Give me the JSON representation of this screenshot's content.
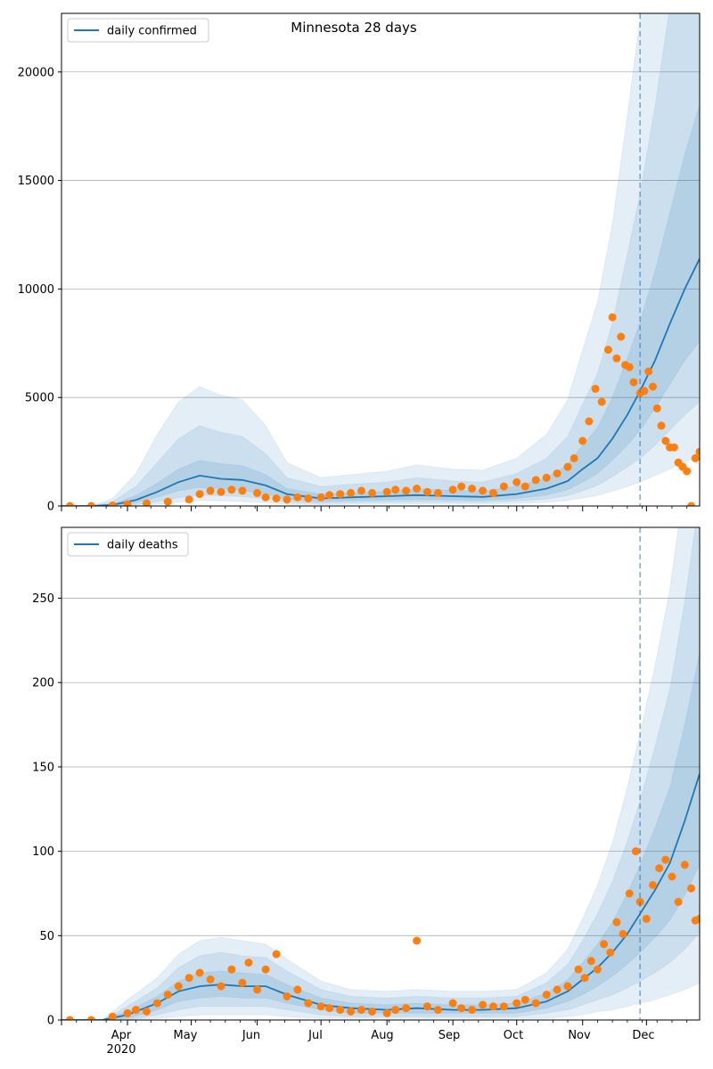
{
  "chart_data": [
    {
      "type": "line",
      "title": "Minnesota 28 days",
      "series": [
        {
          "name": "daily confirmed",
          "color": "#1f77b4"
        }
      ],
      "observed_color": "#ff7f0e",
      "band_color": "#1f77b4",
      "forecast_start": "2020-11-28",
      "xlim": [
        "2020-03-01",
        "2020-12-26"
      ],
      "ylim": [
        0,
        22700
      ],
      "yticks": [
        0,
        5000,
        10000,
        15000,
        20000
      ],
      "ytick_labels": [
        "0",
        "5000",
        "10000",
        "15000",
        "20000"
      ],
      "grid": "horizontal",
      "legend_position": "top-left",
      "x_dates": [
        "2020-03-01",
        "2020-03-15",
        "2020-03-25",
        "2020-04-05",
        "2020-04-15",
        "2020-04-25",
        "2020-05-05",
        "2020-05-15",
        "2020-05-25",
        "2020-06-05",
        "2020-06-15",
        "2020-07-01",
        "2020-07-15",
        "2020-08-01",
        "2020-08-15",
        "2020-09-01",
        "2020-09-15",
        "2020-10-01",
        "2020-10-15",
        "2020-10-25",
        "2020-11-01",
        "2020-11-08",
        "2020-11-15",
        "2020-11-22",
        "2020-11-28",
        "2020-12-05",
        "2020-12-12",
        "2020-12-19",
        "2020-12-26"
      ],
      "mean": [
        0,
        0,
        50,
        280,
        650,
        1100,
        1400,
        1250,
        1200,
        950,
        550,
        350,
        400,
        450,
        500,
        450,
        420,
        550,
        800,
        1150,
        1700,
        2200,
        3100,
        4200,
        5300,
        6700,
        8400,
        10000,
        11400
      ],
      "band_50_low": [
        0,
        0,
        20,
        150,
        400,
        700,
        850,
        800,
        720,
        550,
        300,
        200,
        250,
        280,
        300,
        280,
        260,
        350,
        500,
        750,
        1100,
        1500,
        2100,
        2800,
        3500,
        4500,
        5600,
        6700,
        7600
      ],
      "band_50_high": [
        0,
        0,
        90,
        480,
        1050,
        1700,
        2100,
        1950,
        1850,
        1450,
        800,
        550,
        600,
        680,
        800,
        720,
        700,
        900,
        1300,
        1900,
        2800,
        3600,
        5000,
        6800,
        8500,
        10800,
        13500,
        16200,
        18500
      ],
      "band_80_low": [
        0,
        0,
        5,
        60,
        200,
        380,
        500,
        480,
        430,
        330,
        170,
        120,
        160,
        180,
        190,
        180,
        170,
        230,
        320,
        480,
        700,
        950,
        1350,
        1800,
        2200,
        2800,
        3500,
        4200,
        4800
      ],
      "band_80_high": [
        0,
        0,
        200,
        900,
        2000,
        3100,
        3700,
        3400,
        3200,
        2400,
        1300,
        900,
        1000,
        1100,
        1300,
        1150,
        1100,
        1500,
        2200,
        3200,
        4700,
        6100,
        8400,
        11600,
        14400,
        18400,
        23000,
        27000,
        31000
      ],
      "band_95_low": [
        0,
        0,
        0,
        15,
        80,
        180,
        250,
        240,
        200,
        150,
        80,
        60,
        80,
        90,
        100,
        90,
        90,
        120,
        170,
        250,
        360,
        480,
        680,
        900,
        1100,
        1400,
        1700,
        2000,
        2300
      ],
      "band_95_high": [
        0,
        0,
        350,
        1500,
        3300,
        4800,
        5500,
        5100,
        4900,
        3700,
        2000,
        1300,
        1450,
        1600,
        1900,
        1700,
        1650,
        2200,
        3300,
        4900,
        7200,
        9400,
        13000,
        18000,
        22500,
        28000,
        34000,
        40000,
        46000
      ],
      "observed_dates": [
        "2020-03-05",
        "2020-03-15",
        "2020-03-25",
        "2020-04-01",
        "2020-04-10",
        "2020-04-20",
        "2020-04-30",
        "2020-05-05",
        "2020-05-10",
        "2020-05-15",
        "2020-05-20",
        "2020-05-25",
        "2020-06-01",
        "2020-06-05",
        "2020-06-10",
        "2020-06-15",
        "2020-06-20",
        "2020-06-25",
        "2020-07-01",
        "2020-07-05",
        "2020-07-10",
        "2020-07-15",
        "2020-07-20",
        "2020-07-25",
        "2020-08-01",
        "2020-08-05",
        "2020-08-10",
        "2020-08-15",
        "2020-08-20",
        "2020-08-25",
        "2020-09-01",
        "2020-09-05",
        "2020-09-10",
        "2020-09-15",
        "2020-09-20",
        "2020-09-25",
        "2020-10-01",
        "2020-10-05",
        "2020-10-10",
        "2020-10-15",
        "2020-10-20",
        "2020-10-25",
        "2020-10-28",
        "2020-11-01",
        "2020-11-04",
        "2020-11-07",
        "2020-11-10",
        "2020-11-13",
        "2020-11-15",
        "2020-11-17",
        "2020-11-19",
        "2020-11-21",
        "2020-11-23",
        "2020-11-25",
        "2020-11-28",
        "2020-11-30",
        "2020-12-02",
        "2020-12-04",
        "2020-12-06",
        "2020-12-08",
        "2020-12-10",
        "2020-12-12",
        "2020-12-14",
        "2020-12-16",
        "2020-12-18",
        "2020-12-20",
        "2020-12-22",
        "2020-12-24",
        "2020-12-26"
      ],
      "observed_values": [
        0,
        0,
        20,
        80,
        120,
        200,
        300,
        550,
        700,
        650,
        750,
        700,
        600,
        400,
        350,
        300,
        400,
        350,
        400,
        500,
        550,
        600,
        700,
        600,
        650,
        750,
        700,
        800,
        650,
        600,
        750,
        900,
        800,
        700,
        600,
        900,
        1100,
        900,
        1200,
        1300,
        1500,
        1800,
        2200,
        3000,
        3900,
        5400,
        4800,
        7200,
        8700,
        6800,
        7800,
        6500,
        6400,
        5700,
        5200,
        5300,
        6200,
        5500,
        4500,
        3700,
        3000,
        2700,
        2700,
        2000,
        1800,
        1600,
        0,
        2200,
        2500
      ]
    },
    {
      "type": "line",
      "series": [
        {
          "name": "daily deaths",
          "color": "#1f77b4"
        }
      ],
      "observed_color": "#ff7f0e",
      "band_color": "#1f77b4",
      "forecast_start": "2020-11-28",
      "xlim": [
        "2020-03-01",
        "2020-12-26"
      ],
      "ylim": [
        0,
        292
      ],
      "yticks": [
        0,
        50,
        100,
        150,
        200,
        250
      ],
      "ytick_labels": [
        "0",
        "50",
        "100",
        "150",
        "200",
        "250"
      ],
      "grid": "horizontal",
      "legend_position": "top-left",
      "x_dates": [
        "2020-03-01",
        "2020-03-20",
        "2020-04-01",
        "2020-04-15",
        "2020-04-25",
        "2020-05-05",
        "2020-05-15",
        "2020-05-25",
        "2020-06-05",
        "2020-06-15",
        "2020-07-01",
        "2020-07-15",
        "2020-08-01",
        "2020-08-15",
        "2020-09-01",
        "2020-09-15",
        "2020-10-01",
        "2020-10-15",
        "2020-10-25",
        "2020-11-01",
        "2020-11-08",
        "2020-11-15",
        "2020-11-22",
        "2020-11-28",
        "2020-12-05",
        "2020-12-12",
        "2020-12-19",
        "2020-12-26"
      ],
      "mean": [
        0,
        0,
        3,
        10,
        17,
        20,
        21,
        20,
        20,
        15,
        9,
        7,
        6,
        7,
        6,
        6,
        7,
        11,
        17,
        24,
        31,
        40,
        51,
        63,
        77,
        93,
        118,
        146
      ],
      "band_50_low": [
        0,
        0,
        1,
        6,
        11,
        13,
        14,
        13,
        13,
        10,
        6,
        4,
        4,
        4,
        4,
        4,
        4,
        7,
        11,
        15,
        20,
        26,
        33,
        40,
        49,
        59,
        74,
        92
      ],
      "band_50_high": [
        0,
        0,
        5,
        14,
        23,
        28,
        29,
        28,
        27,
        21,
        13,
        10,
        9,
        10,
        9,
        9,
        10,
        16,
        24,
        34,
        45,
        58,
        75,
        92,
        114,
        138,
        175,
        218
      ],
      "band_80_low": [
        0,
        0,
        0,
        3,
        6,
        8,
        8,
        8,
        8,
        6,
        3,
        2,
        2,
        2,
        2,
        2,
        2,
        4,
        6,
        9,
        12,
        15,
        19,
        23,
        28,
        34,
        42,
        52
      ],
      "band_80_high": [
        0,
        0,
        8,
        19,
        31,
        38,
        40,
        38,
        37,
        29,
        18,
        14,
        13,
        14,
        13,
        13,
        14,
        22,
        33,
        47,
        63,
        82,
        106,
        130,
        162,
        196,
        248,
        310
      ],
      "band_95_low": [
        0,
        0,
        0,
        1,
        2,
        3,
        3,
        3,
        3,
        2,
        1,
        1,
        1,
        1,
        1,
        1,
        1,
        1,
        2,
        3,
        5,
        6,
        8,
        10,
        12,
        15,
        18,
        22
      ],
      "band_95_high": [
        0,
        0,
        12,
        25,
        39,
        47,
        49,
        47,
        45,
        36,
        23,
        18,
        17,
        18,
        17,
        17,
        18,
        28,
        42,
        60,
        80,
        105,
        138,
        170,
        210,
        255,
        320,
        400
      ],
      "observed_dates": [
        "2020-03-05",
        "2020-03-15",
        "2020-03-25",
        "2020-04-01",
        "2020-04-05",
        "2020-04-10",
        "2020-04-15",
        "2020-04-20",
        "2020-04-25",
        "2020-04-30",
        "2020-05-05",
        "2020-05-10",
        "2020-05-15",
        "2020-05-20",
        "2020-05-25",
        "2020-05-28",
        "2020-06-01",
        "2020-06-05",
        "2020-06-10",
        "2020-06-15",
        "2020-06-20",
        "2020-06-25",
        "2020-07-01",
        "2020-07-05",
        "2020-07-10",
        "2020-07-15",
        "2020-07-20",
        "2020-07-25",
        "2020-08-01",
        "2020-08-05",
        "2020-08-10",
        "2020-08-15",
        "2020-08-20",
        "2020-08-25",
        "2020-09-01",
        "2020-09-05",
        "2020-09-10",
        "2020-09-15",
        "2020-09-20",
        "2020-09-25",
        "2020-10-01",
        "2020-10-05",
        "2020-10-10",
        "2020-10-15",
        "2020-10-20",
        "2020-10-25",
        "2020-10-30",
        "2020-11-02",
        "2020-11-05",
        "2020-11-08",
        "2020-11-11",
        "2020-11-14",
        "2020-11-17",
        "2020-11-20",
        "2020-11-23",
        "2020-11-26",
        "2020-11-28",
        "2020-12-01",
        "2020-12-04",
        "2020-12-07",
        "2020-12-10",
        "2020-12-13",
        "2020-12-16",
        "2020-12-19",
        "2020-12-22",
        "2020-12-24",
        "2020-12-26"
      ],
      "observed_values": [
        0,
        0,
        2,
        4,
        6,
        5,
        10,
        15,
        20,
        25,
        28,
        24,
        20,
        30,
        22,
        34,
        18,
        30,
        39,
        14,
        18,
        10,
        8,
        7,
        6,
        5,
        6,
        5,
        4,
        6,
        7,
        47,
        8,
        6,
        10,
        7,
        6,
        9,
        8,
        8,
        10,
        12,
        10,
        15,
        18,
        20,
        30,
        25,
        35,
        30,
        45,
        40,
        58,
        51,
        75,
        100,
        70,
        60,
        80,
        90,
        95,
        85,
        70,
        92,
        78,
        59,
        60
      ]
    }
  ]
}
